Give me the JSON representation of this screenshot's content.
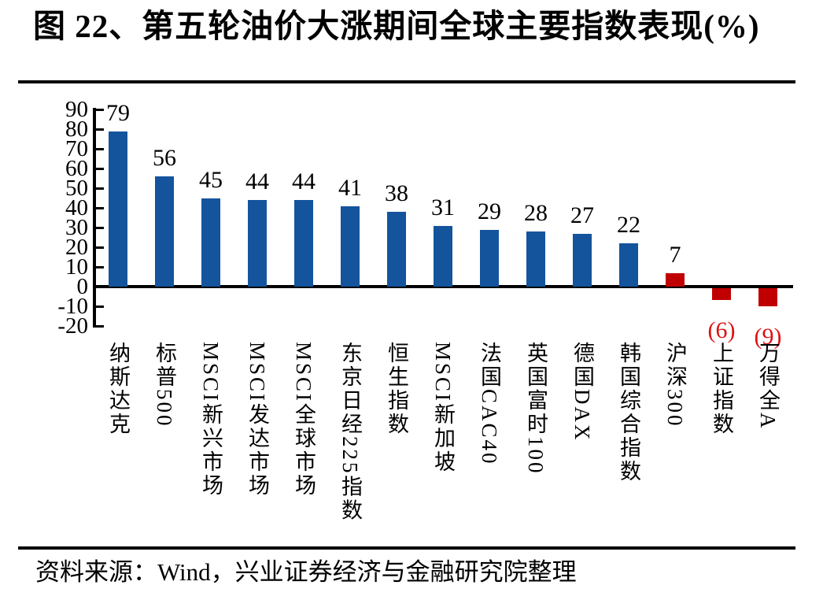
{
  "header": {
    "title": "图 22、第五轮油价大涨期间全球主要指数表现(%)"
  },
  "footer": {
    "source": "资料来源：Wind，兴业证券经济与金融研究院整理"
  },
  "colors": {
    "positive_bar": "#14549C",
    "negative_bar": "#C00000",
    "negative_label_text": "#DD1111",
    "axis": "#000000",
    "text": "#000000"
  },
  "chart_data": {
    "type": "bar",
    "title": "第五轮油价大涨期间全球主要指数表现(%)",
    "categories": [
      "纳斯达克",
      "标普500",
      "MSCI新兴市场",
      "MSCI发达市场",
      "MSCI全球市场",
      "东京日经225指数",
      "恒生指数",
      "MSCI新加坡",
      "法国CAC40",
      "英国富时100",
      "德国DAX",
      "韩国综合指数",
      "沪深300",
      "上证指数",
      "万得全A"
    ],
    "values": [
      79,
      56,
      45,
      44,
      44,
      41,
      38,
      31,
      29,
      28,
      27,
      22,
      7,
      -6,
      -9
    ],
    "data_labels": [
      "79",
      "56",
      "45",
      "44",
      "44",
      "41",
      "38",
      "31",
      "29",
      "28",
      "27",
      "22",
      "7",
      "(6)",
      "(9)"
    ],
    "bar_colors": [
      "#14549C",
      "#14549C",
      "#14549C",
      "#14549C",
      "#14549C",
      "#14549C",
      "#14549C",
      "#14549C",
      "#14549C",
      "#14549C",
      "#14549C",
      "#14549C",
      "#C00000",
      "#C00000",
      "#C00000"
    ],
    "xlabel": "",
    "ylabel": "",
    "ylim": [
      -20,
      90
    ],
    "yticks": [
      90,
      80,
      70,
      60,
      50,
      40,
      30,
      20,
      10,
      0,
      -10,
      -20
    ],
    "grid": false,
    "legend": false
  }
}
